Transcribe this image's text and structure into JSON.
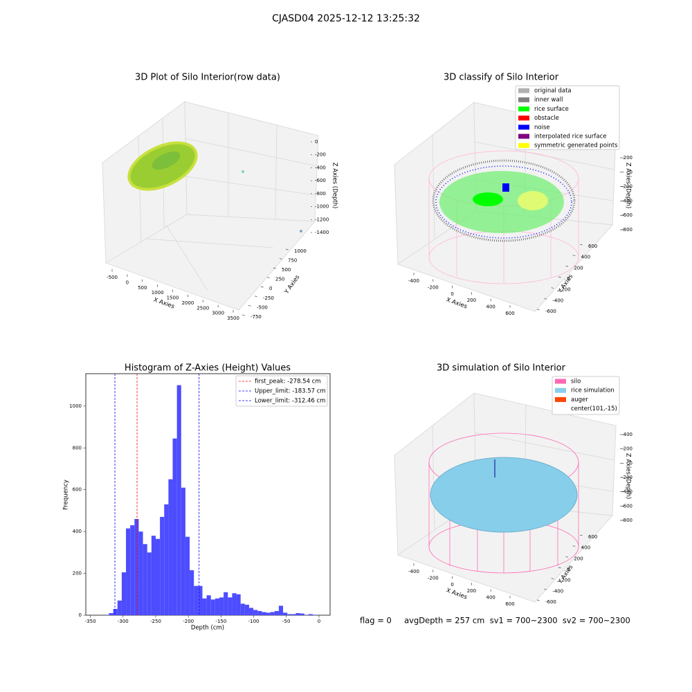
{
  "suptitle": "CJASD04 2025-12-12 13:25:32",
  "chart_data": [
    {
      "type": "scatter3d",
      "title": "3D Plot of Silo Interior(row data)",
      "xlabel": "X Axies",
      "ylabel": "Y Axies",
      "zlabel": "Z Axies (Depth)",
      "xlim": [
        -700,
        3600
      ],
      "xticks": [
        -500,
        0,
        500,
        1000,
        1500,
        2000,
        2500,
        3000,
        3500
      ],
      "ylim": [
        -900,
        1200
      ],
      "yticks": [
        -750,
        -500,
        -250,
        0,
        250,
        500,
        750,
        1000
      ],
      "zlim": [
        -1500,
        100
      ],
      "zticks": [
        0,
        -200,
        -400,
        -600,
        -800,
        -1000,
        -1200,
        -1400
      ]
    },
    {
      "type": "scatter3d",
      "title": "3D classify of Silo Interior",
      "xlabel": "X Axies",
      "ylabel": "Y Axies",
      "zlabel": "Z Axies (Depth)",
      "legend": [
        {
          "name": "original data",
          "color": "#b0b0b0"
        },
        {
          "name": "inner wall",
          "color": "#808080"
        },
        {
          "name": "rice surface",
          "color": "#00ff00"
        },
        {
          "name": "obstacle",
          "color": "#ff0000"
        },
        {
          "name": "noise",
          "color": "#0000ff"
        },
        {
          "name": "interpolated rice surface",
          "color": "#800080"
        },
        {
          "name": "symmetric generated points",
          "color": "#ffff00"
        }
      ],
      "xlim": [
        -520,
        720
      ],
      "xticks": [
        -400,
        -200,
        0,
        200,
        400,
        600
      ],
      "ylim": [
        -700,
        700
      ],
      "yticks": [
        -600,
        -400,
        -200,
        0,
        200,
        400,
        600
      ],
      "zlim": [
        -900,
        300
      ],
      "zticks": [
        200,
        0,
        -200,
        -400,
        -600,
        -800
      ]
    },
    {
      "type": "histogram",
      "title": "Histogram of Z-Axies (Height) Values",
      "xlabel": "Depth (cm)",
      "ylabel": "Frequency",
      "color": "#4d4dff",
      "bins": [
        -328,
        -321.5,
        -315,
        -308.5,
        -302,
        -295.5,
        -289,
        -282.5,
        -276,
        -269.5,
        -263,
        -256.5,
        -250,
        -243.5,
        -237,
        -230.5,
        -224,
        -217.5,
        -211,
        -204.5,
        -198,
        -191.5,
        -185,
        -178.5,
        -172,
        -165.5,
        -159,
        -152.5,
        -146,
        -139.5,
        -133,
        -126.5,
        -120,
        -113.5,
        -107,
        -100.5,
        -94,
        -87.5,
        -81,
        -74.5,
        -68,
        -61.5,
        -55,
        -48.5,
        -42,
        -35.5,
        -29,
        -22.5,
        -16,
        -9.5,
        -3
      ],
      "counts": [
        2,
        10,
        30,
        70,
        205,
        415,
        430,
        460,
        400,
        340,
        300,
        380,
        365,
        470,
        530,
        650,
        845,
        1100,
        610,
        375,
        215,
        140,
        140,
        80,
        95,
        75,
        80,
        85,
        110,
        85,
        105,
        100,
        55,
        50,
        35,
        25,
        20,
        15,
        12,
        15,
        20,
        45,
        12,
        5,
        5,
        10,
        8,
        2,
        5,
        2
      ],
      "vlines": [
        {
          "label": "first_peak: -278.54 cm",
          "value": -278.54,
          "color": "#ff0000"
        },
        {
          "label": "Upper_limit: -183.57 cm",
          "value": -183.57,
          "color": "#0000ff"
        },
        {
          "label": "Lower_limit: -312.46 cm",
          "value": -312.46,
          "color": "#0000ff"
        }
      ],
      "xlim": [
        -357,
        17
      ],
      "xticks": [
        -350,
        -300,
        -250,
        -200,
        -150,
        -100,
        -50,
        0
      ],
      "ylim": [
        0,
        1155
      ],
      "yticks": [
        0,
        200,
        400,
        600,
        800,
        1000
      ]
    },
    {
      "type": "surface3d",
      "title": "3D simulation of Silo Interior",
      "xlabel": "X Axies",
      "ylabel": "Y Axies",
      "zlabel": "Z Axies (Depth)",
      "legend": [
        {
          "name": "silo",
          "color": "#ff69b4"
        },
        {
          "name": "rice simulation",
          "color": "#87ceeb"
        },
        {
          "name": "auger",
          "color": "#ff4500"
        },
        {
          "name": "center(101,-15)"
        }
      ],
      "xlim": [
        -520,
        720
      ],
      "xticks": [
        -400,
        -200,
        0,
        200,
        400,
        600
      ],
      "ylim": [
        -700,
        700
      ],
      "yticks": [
        -600,
        -400,
        -200,
        0,
        200,
        400,
        600
      ],
      "zlim": [
        -900,
        500
      ],
      "zticks": [
        400,
        200,
        0,
        -200,
        -400,
        -600,
        -800
      ],
      "annotation": "flag = 0     avgDepth = 257 cm  sv1 = 700~2300  sv2 = 700~2300"
    }
  ]
}
